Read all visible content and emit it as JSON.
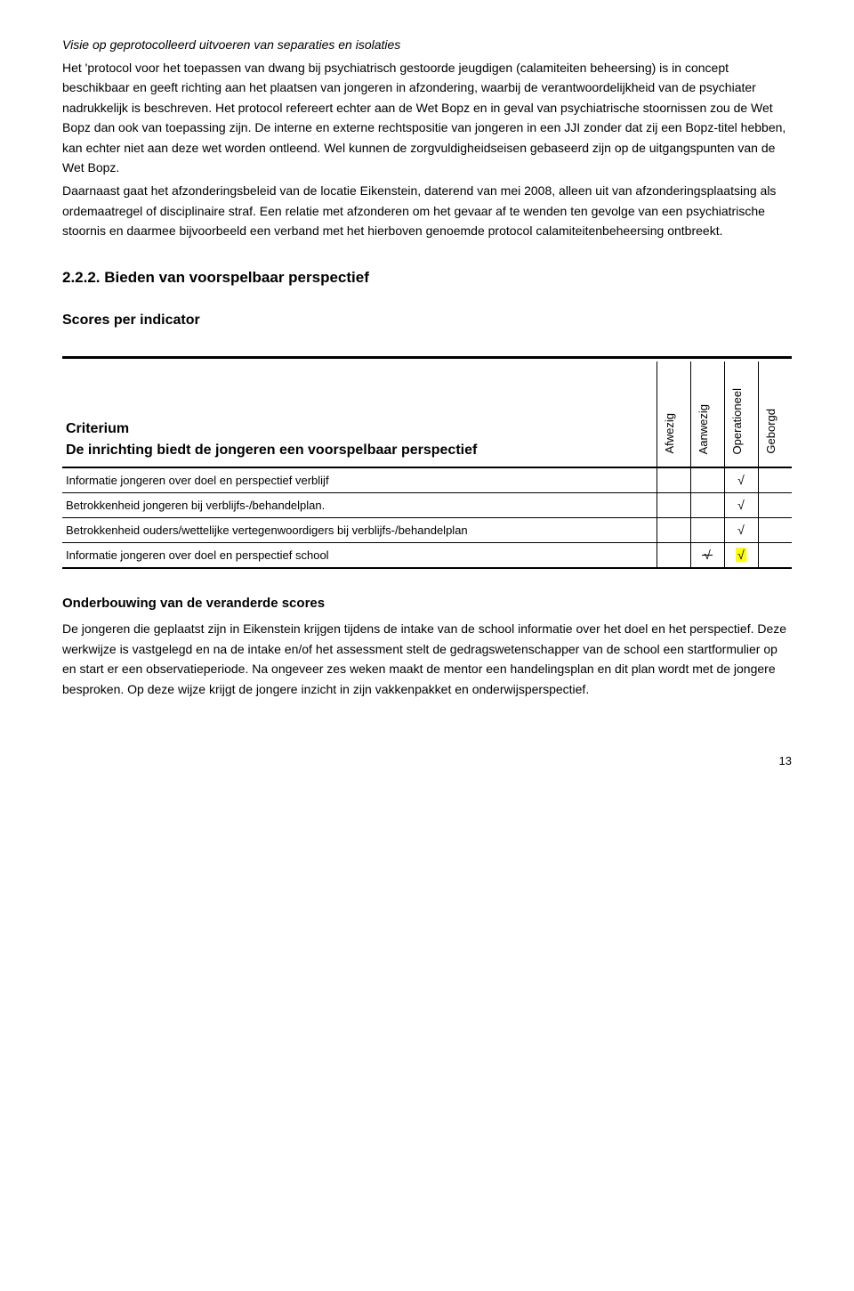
{
  "italicHeading": "Visie op geprotocolleerd uitvoeren van separaties en isolaties",
  "para1": "Het 'protocol voor het toepassen van dwang bij psychiatrisch gestoorde jeugdigen (calamiteiten beheersing) is in concept beschikbaar en geeft richting aan het plaatsen van jongeren in afzondering, waarbij de verantwoordelijkheid van de psychiater nadrukkelijk is beschreven. Het protocol refereert echter aan de Wet Bopz en in geval van psychiatrische stoornissen zou de Wet Bopz dan ook van toepassing zijn. De interne en externe rechtspositie van jongeren in een JJI zonder dat zij een Bopz-titel hebben, kan echter niet aan deze wet worden ontleend. Wel kunnen de zorgvuldigheidseisen gebaseerd zijn op de uitgangspunten van de Wet Bopz.",
  "para2": "Daarnaast gaat het afzonderingsbeleid van de locatie Eikenstein, daterend van mei 2008, alleen uit van afzonderingsplaatsing als ordemaatregel of disciplinaire straf. Een relatie met afzonderen om het gevaar af te wenden ten gevolge van een psychiatrische stoornis en daarmee bijvoorbeeld een verband met het hierboven genoemde protocol calamiteitenbeheersing ontbreekt.",
  "sectionHeading": "2.2.2.  Bieden van voorspelbaar perspectief",
  "scoresLabel": "Scores per indicator",
  "table": {
    "criteriumLabel": "Criterium",
    "criteriumText": "De inrichting biedt de jongeren een voorspelbaar perspectief",
    "columns": [
      "Afwezig",
      "Aanwezig",
      "Operationeel",
      "Geborgd"
    ],
    "rows": [
      {
        "indicator": "Informatie jongeren over doel en perspectief verblijf",
        "scores": [
          "",
          "",
          "√",
          ""
        ]
      },
      {
        "indicator": "Betrokkenheid jongeren bij verblijfs-/behandelplan.",
        "scores": [
          "",
          "",
          "√",
          ""
        ]
      },
      {
        "indicator": "Betrokkenheid ouders/wettelijke vertegenwoordigers bij verblijfs-/behandelplan",
        "scores": [
          "",
          "",
          "√",
          ""
        ]
      },
      {
        "indicator": "Informatie jongeren over doel en perspectief school",
        "scores": [
          "",
          "strike",
          "hl",
          ""
        ]
      }
    ]
  },
  "underbouwingHeading": "Onderbouwing van de veranderde scores",
  "para3": "De jongeren die geplaatst zijn in Eikenstein krijgen tijdens de intake van de school informatie over het doel en het perspectief. Deze werkwijze is vastgelegd en na de intake en/of het assessment stelt de gedragswetenschapper van de school een startformulier op en start er een observatieperiode. Na ongeveer zes weken maakt de mentor een handelingsplan en dit plan wordt met de jongere besproken. Op deze wijze krijgt de jongere inzicht in zijn vakkenpakket en onderwijsperspectief.",
  "pageNum": "13"
}
